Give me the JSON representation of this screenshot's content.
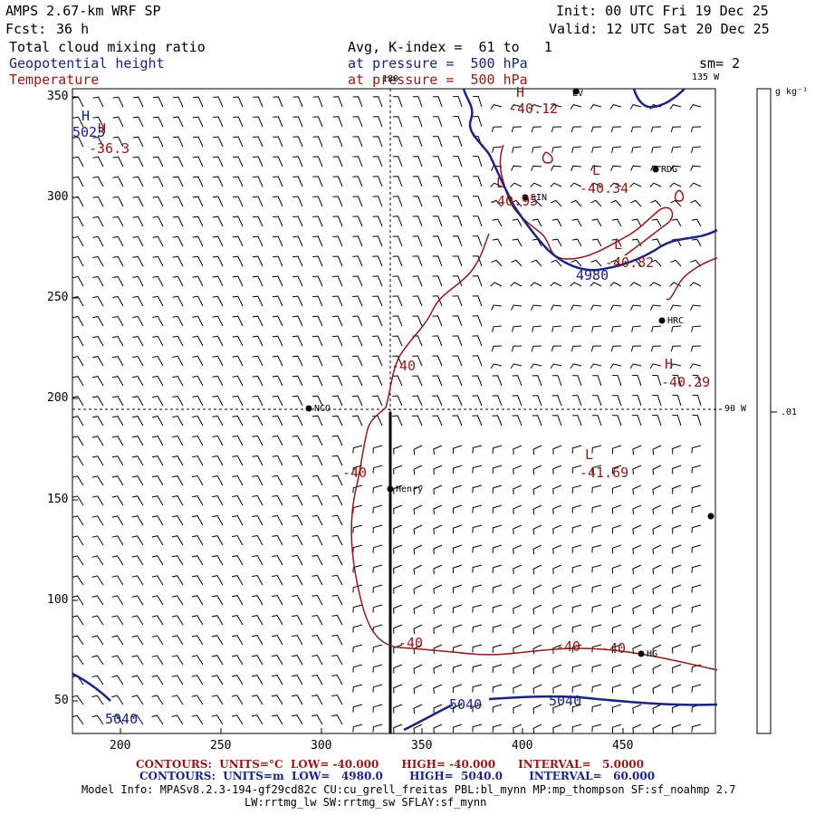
{
  "header": {
    "model": "AMPS 2.67-km WRF SP",
    "forecast_label": "Fcst:",
    "forecast_hours": "36 h",
    "init": "Init: 00 UTC Fri 19 Dec 25",
    "valid": "Valid: 12 UTC Sat 20 Dec 25"
  },
  "fields": {
    "cloud": "Total cloud mixing ratio",
    "cloud_avg": "Avg, K-index =  61 to   1",
    "geo": "Geopotential height",
    "geo_level": "at pressure =  500 hPa",
    "temp": "Temperature",
    "temp_level": "at pressure =  500 hPa",
    "smooth": "sm= 2"
  },
  "colorbar": {
    "unit": "g kg⁻¹",
    "tick": ".01"
  },
  "map": {
    "y_ticks": [
      "350",
      "300",
      "250",
      "200",
      "150",
      "100",
      "50"
    ],
    "x_ticks": [
      "200",
      "250",
      "300",
      "350",
      "400",
      "450"
    ],
    "lon_top": "180",
    "lon_corner": "135 W",
    "lon_right": "90 W",
    "stations": {
      "nco": "NCO",
      "henry": "Henry",
      "rdg": "RDG",
      "hrc": "HRC",
      "sin": "SIN",
      "lv": "LV",
      "hg": "HG"
    },
    "highs_lows": {
      "high": "H",
      "low": "L"
    },
    "temp_values": {
      "t1": "-36.3",
      "t2": "-40.12",
      "t3": "-40.34",
      "t4": "-40.95",
      "t5": "-40.82",
      "t6": "-40.29",
      "t7": "-41.69",
      "c1": "-40",
      "c2": "-40",
      "c3": "-40",
      "c4": "-40",
      "c5": "-40"
    },
    "height_values": {
      "h1": "5023",
      "h2": "4980",
      "h3": "5040",
      "h4": "5040",
      "h5": "5040"
    }
  },
  "footer": {
    "temp_contours": "CONTOURS:  UNITS=°C  LOW= -40.000      HIGH= -40.000      INTERVAL=   5.0000",
    "height_contours": "CONTOURS:  UNITS=m  LOW=   4980.0       HIGH=  5040.0       INTERVAL=   60.000",
    "model_info": "Model Info: MPASv8.2.3-194-gf29cd82c CU:cu_grell_freitas PBL:bl_mynn MP:mp_thompson SF:sf_noahmp 2.7",
    "model_info2": "LW:rrtmg_lw SW:rrtmg_sw SFLAY:sf_mynn"
  },
  "colors": {
    "temperature": "#8b1a1a",
    "height": "#1a237e",
    "frame": "#000000"
  }
}
